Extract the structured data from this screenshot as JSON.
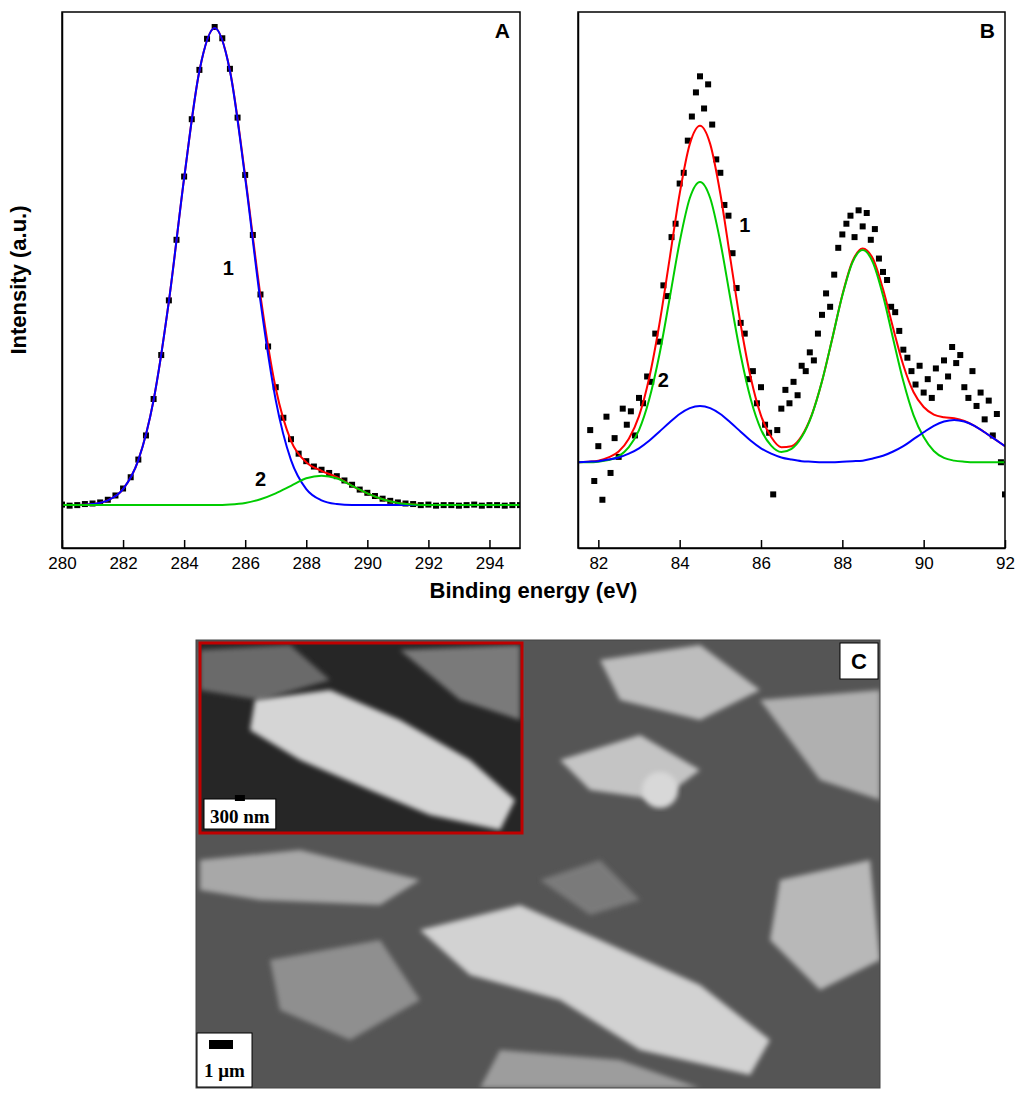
{
  "chart_data": [
    {
      "type": "line",
      "panel": "A",
      "ylabel": "Intensity (a.u.)",
      "xlim": [
        280,
        295
      ],
      "ylim": [
        0,
        100
      ],
      "xticks": [
        280,
        282,
        284,
        286,
        288,
        290,
        292,
        294
      ],
      "tick_labels": "x",
      "series": [
        {
          "type": "scatter",
          "marker": "square",
          "color": "#000000",
          "x": [
            280,
            280.25,
            280.5,
            280.75,
            281,
            281.25,
            281.5,
            281.75,
            282,
            282.25,
            282.5,
            282.75,
            283,
            283.25,
            283.5,
            283.75,
            284,
            284.25,
            284.5,
            284.75,
            285,
            285.25,
            285.5,
            285.75,
            286,
            286.25,
            286.5,
            286.75,
            287,
            287.25,
            287.5,
            287.75,
            288,
            288.25,
            288.5,
            288.75,
            289,
            289.25,
            289.5,
            289.75,
            290,
            290.25,
            290.5,
            290.75,
            291,
            291.25,
            291.5,
            291.75,
            292,
            292.25,
            292.5,
            292.75,
            293,
            293.25,
            293.5,
            293.75,
            294,
            294.25,
            294.5,
            294.75,
            295
          ],
          "values": [
            8.1,
            7.9,
            8.0,
            8.2,
            8.3,
            8.5,
            9.0,
            9.8,
            11.1,
            13.2,
            16.5,
            21.0,
            27.8,
            36.0,
            46.2,
            57.5,
            69.3,
            80.0,
            89.2,
            95.0,
            97.2,
            95.1,
            89.4,
            80.3,
            69.6,
            58.4,
            47.3,
            37.6,
            30.0,
            24.3,
            20.3,
            17.6,
            16.2,
            15.2,
            14.6,
            14.0,
            13.4,
            12.6,
            11.8,
            10.9,
            10.3,
            9.7,
            9.2,
            8.8,
            8.5,
            8.3,
            8.2,
            8.0,
            8.1,
            7.9,
            8.0,
            8.0,
            7.9,
            8.0,
            8.1,
            7.9,
            8.0,
            8.0,
            7.9,
            8.0,
            8.0
          ]
        },
        {
          "type": "line",
          "color": "#ff0000",
          "x": [
            280,
            280.5,
            281,
            281.5,
            282,
            282.5,
            283,
            283.5,
            284,
            284.5,
            285,
            285.5,
            286,
            286.5,
            287,
            287.5,
            288,
            288.5,
            289,
            289.5,
            290,
            290.5,
            291,
            291.5,
            292,
            292.5,
            293,
            293.5,
            294,
            294.5,
            295
          ],
          "values": [
            8.0,
            8.0,
            8.2,
            8.9,
            11.0,
            16.4,
            27.6,
            46.0,
            69.0,
            89.0,
            97.0,
            89.1,
            69.4,
            47.1,
            29.8,
            20.0,
            16.0,
            14.4,
            13.2,
            11.6,
            10.2,
            9.1,
            8.4,
            8.1,
            8.0,
            8.0,
            8.0,
            8.0,
            8.0,
            8.0,
            8.0
          ]
        },
        {
          "type": "line",
          "color": "#0000ff",
          "x": [
            280,
            280.5,
            281,
            281.5,
            282,
            282.5,
            283,
            283.5,
            284,
            284.5,
            285,
            285.5,
            286,
            286.5,
            287,
            287.5,
            288,
            288.5,
            289,
            289.5,
            290,
            290.5,
            291,
            291.5,
            292,
            292.5,
            293,
            293.5,
            294,
            294.5,
            295
          ],
          "values": [
            8.0,
            8.0,
            8.2,
            8.9,
            11.0,
            16.4,
            27.6,
            46.0,
            69.0,
            89.0,
            97.0,
            89.0,
            69.0,
            46.0,
            27.6,
            16.4,
            11.0,
            8.9,
            8.2,
            8.0,
            8.0,
            8.0,
            8.0,
            8.0,
            8.0,
            8.0,
            8.0,
            8.0,
            8.0,
            8.0,
            8.0
          ]
        },
        {
          "type": "line",
          "color": "#00cc00",
          "x": [
            280,
            280.5,
            281,
            281.5,
            282,
            282.5,
            283,
            283.5,
            284,
            284.5,
            285,
            285.5,
            286,
            286.5,
            287,
            287.5,
            288,
            288.5,
            289,
            289.5,
            290,
            290.5,
            291,
            291.5,
            292,
            292.5,
            293,
            293.5,
            294,
            294.5,
            295
          ],
          "values": [
            8.0,
            8.0,
            8.0,
            8.0,
            8.0,
            8.0,
            8.0,
            8.0,
            8.0,
            8.0,
            8.0,
            8.1,
            8.4,
            9.1,
            10.2,
            11.6,
            13.0,
            13.5,
            13.0,
            11.6,
            10.2,
            9.1,
            8.4,
            8.1,
            8.0,
            8.0,
            8.0,
            8.0,
            8.0,
            8.0,
            8.0
          ]
        }
      ],
      "annotations": [
        {
          "text": "1",
          "x": 285.45,
          "y": 52
        },
        {
          "text": "2",
          "x": 286.5,
          "y": 12.5
        }
      ]
    },
    {
      "type": "line",
      "panel": "B",
      "xlim": [
        81.5,
        92
      ],
      "ylim": [
        0,
        100
      ],
      "xticks": [
        82,
        84,
        86,
        88,
        90,
        92
      ],
      "tick_labels": "x",
      "series": [
        {
          "type": "scatter",
          "marker": "square",
          "color": "#000000",
          "x": [
            81.8,
            81.9,
            82.0,
            82.1,
            82.2,
            82.3,
            82.4,
            82.5,
            82.6,
            82.7,
            82.8,
            82.9,
            83.0,
            83.1,
            83.2,
            83.3,
            83.4,
            83.5,
            83.6,
            83.7,
            83.8,
            83.9,
            84.0,
            84.1,
            84.2,
            84.3,
            84.4,
            84.5,
            84.6,
            84.7,
            84.8,
            84.9,
            85.0,
            85.1,
            85.2,
            85.3,
            85.4,
            85.5,
            85.6,
            85.7,
            85.8,
            85.9,
            86.0,
            86.1,
            86.2,
            86.3,
            86.4,
            86.5,
            86.6,
            86.7,
            86.8,
            86.9,
            87.0,
            87.1,
            87.2,
            87.3,
            87.4,
            87.5,
            87.6,
            87.7,
            87.8,
            87.9,
            88.0,
            88.1,
            88.2,
            88.3,
            88.4,
            88.5,
            88.6,
            88.7,
            88.8,
            88.9,
            89.0,
            89.1,
            89.2,
            89.3,
            89.4,
            89.5,
            89.6,
            89.7,
            89.8,
            89.9,
            90.0,
            90.1,
            90.2,
            90.3,
            90.4,
            90.5,
            90.6,
            90.7,
            90.8,
            90.9,
            91.0,
            91.1,
            91.2,
            91.3,
            91.4,
            91.5,
            91.6,
            91.7,
            91.8,
            91.9,
            92.0
          ],
          "values": [
            22.0,
            12.5,
            19.0,
            9.0,
            24.5,
            14.0,
            20.5,
            17.0,
            26.0,
            23.0,
            25.5,
            21.0,
            28.0,
            27.0,
            32.0,
            31.0,
            40.0,
            38.5,
            49.0,
            47.0,
            58.0,
            60.5,
            68.0,
            70.0,
            76.0,
            80.5,
            85.0,
            88.0,
            82.0,
            86.5,
            79.0,
            72.5,
            70.0,
            64.0,
            62.0,
            55.0,
            48.5,
            42.0,
            40.0,
            31.5,
            33.0,
            27.0,
            30.0,
            23.0,
            21.5,
            10.0,
            22.0,
            26.0,
            29.5,
            27.0,
            31.0,
            28.5,
            34.0,
            33.0,
            36.5,
            35.0,
            40.0,
            43.5,
            47.5,
            45.0,
            51.0,
            56.0,
            58.5,
            60.5,
            62.0,
            58.0,
            63.0,
            60.0,
            62.5,
            57.5,
            59.5,
            54.0,
            51.5,
            50.0,
            45.0,
            44.0,
            40.5,
            37.0,
            35.5,
            33.0,
            30.5,
            34.0,
            29.0,
            31.5,
            28.0,
            33.5,
            30.0,
            35.0,
            32.0,
            37.5,
            34.5,
            36.0,
            30.0,
            28.0,
            33.0,
            26.5,
            29.0,
            24.0,
            27.5,
            21.0,
            25.0,
            16.0,
            10.0
          ]
        },
        {
          "type": "line",
          "color": "#ff0000",
          "x": [
            81.5,
            81.75,
            82,
            82.25,
            82.5,
            82.75,
            83,
            83.25,
            83.5,
            83.75,
            84,
            84.25,
            84.5,
            84.75,
            85,
            85.25,
            85.5,
            85.75,
            86,
            86.25,
            86.5,
            86.75,
            87,
            87.25,
            87.5,
            87.75,
            88,
            88.25,
            88.5,
            88.75,
            89,
            89.25,
            89.5,
            89.75,
            90,
            90.25,
            90.5,
            90.75,
            91,
            91.25,
            91.5,
            91.75,
            92
          ],
          "values": [
            16.0,
            16.1,
            16.3,
            16.9,
            18.0,
            20.4,
            24.6,
            31.7,
            41.7,
            53.8,
            66.1,
            75.4,
            78.8,
            75.4,
            66.1,
            53.8,
            41.7,
            31.7,
            24.7,
            20.7,
            18.8,
            19.0,
            20.9,
            24.9,
            31.1,
            39.0,
            47.2,
            53.5,
            55.9,
            54.0,
            48.3,
            41.0,
            34.1,
            29.1,
            26.3,
            24.9,
            24.4,
            24.2,
            23.7,
            22.8,
            21.6,
            20.3,
            19.0
          ]
        },
        {
          "type": "line",
          "color": "#00cc00",
          "x": [
            81.5,
            81.75,
            82,
            82.25,
            82.5,
            82.75,
            83,
            83.25,
            83.5,
            83.75,
            84,
            84.25,
            84.5,
            84.75,
            85,
            85.25,
            85.5,
            85.75,
            86,
            86.25,
            86.5,
            86.75,
            87,
            87.25,
            87.5,
            87.75,
            88,
            88.25,
            88.5,
            88.75,
            89,
            89.25,
            89.5,
            89.75,
            90,
            90.25,
            90.5,
            90.75,
            91,
            91.25,
            91.5,
            91.75,
            92
          ],
          "values": [
            16.0,
            16.0,
            16.1,
            16.4,
            17.1,
            18.8,
            22.0,
            27.7,
            36.0,
            46.4,
            57.1,
            65.3,
            68.3,
            65.3,
            57.1,
            46.4,
            36.0,
            27.7,
            22.1,
            19.1,
            17.9,
            18.5,
            20.7,
            24.8,
            31.1,
            39.0,
            47.1,
            53.3,
            55.6,
            53.3,
            47.1,
            39.0,
            31.1,
            24.8,
            20.7,
            18.1,
            16.8,
            16.3,
            16.1,
            16.0,
            16.0,
            16.0,
            16.0
          ]
        },
        {
          "type": "line",
          "color": "#0000ff",
          "x": [
            81.5,
            81.75,
            82,
            82.25,
            82.5,
            82.75,
            83,
            83.25,
            83.5,
            83.75,
            84,
            84.25,
            84.5,
            84.75,
            85,
            85.25,
            85.5,
            85.75,
            86,
            86.25,
            86.5,
            86.75,
            87,
            87.25,
            87.5,
            87.75,
            88,
            88.25,
            88.5,
            88.75,
            89,
            89.25,
            89.5,
            89.75,
            90,
            90.25,
            90.5,
            90.75,
            91,
            91.25,
            91.5,
            91.75,
            92
          ],
          "values": [
            16.0,
            16.1,
            16.2,
            16.5,
            16.9,
            17.6,
            18.6,
            20.0,
            21.7,
            23.4,
            25.0,
            26.1,
            26.5,
            26.1,
            25.0,
            23.4,
            21.7,
            20.0,
            18.6,
            17.6,
            16.9,
            16.5,
            16.2,
            16.1,
            16.0,
            16.0,
            16.1,
            16.2,
            16.3,
            16.7,
            17.2,
            18.0,
            19.0,
            20.3,
            21.6,
            22.8,
            23.6,
            23.9,
            23.6,
            22.8,
            21.6,
            20.3,
            19.0
          ]
        }
      ],
      "annotations": [
        {
          "text": "1",
          "x": 85.6,
          "y": 60
        },
        {
          "text": "2",
          "x": 83.6,
          "y": 31
        }
      ]
    }
  ],
  "figure": {
    "xlabel": "Binding energy (eV)"
  },
  "image_panel": {
    "panel": "C",
    "scale_bar": "1 μm",
    "inset_scale_bar": "300 nm"
  }
}
